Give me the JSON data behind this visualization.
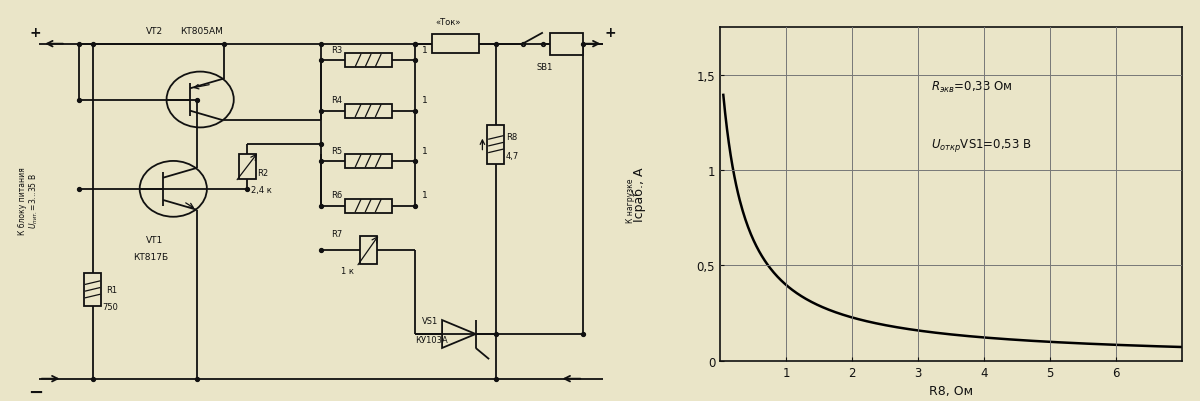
{
  "bg_color": "#EAE5C8",
  "graph": {
    "xlabel": "R8, Ом",
    "ylabel": "Iсраб., А",
    "xlim": [
      0,
      7
    ],
    "ylim": [
      0,
      1.75
    ],
    "xticks": [
      1,
      2,
      3,
      4,
      5,
      6
    ],
    "yticks": [
      0,
      0.5,
      1.0,
      1.5
    ],
    "ytick_labels": [
      "0",
      "0,5",
      "1",
      "1,5"
    ],
    "R_ekv": 0.33,
    "U_otkr": 0.53,
    "ann1": "Rэкв=0,33 Ом",
    "ann2": "UоткрVS1=0,53 В",
    "curve_color": "#000000",
    "grid_color": "#777777",
    "grid_lw": 0.7,
    "axis_lw": 1.2,
    "curve_lw": 1.8
  }
}
